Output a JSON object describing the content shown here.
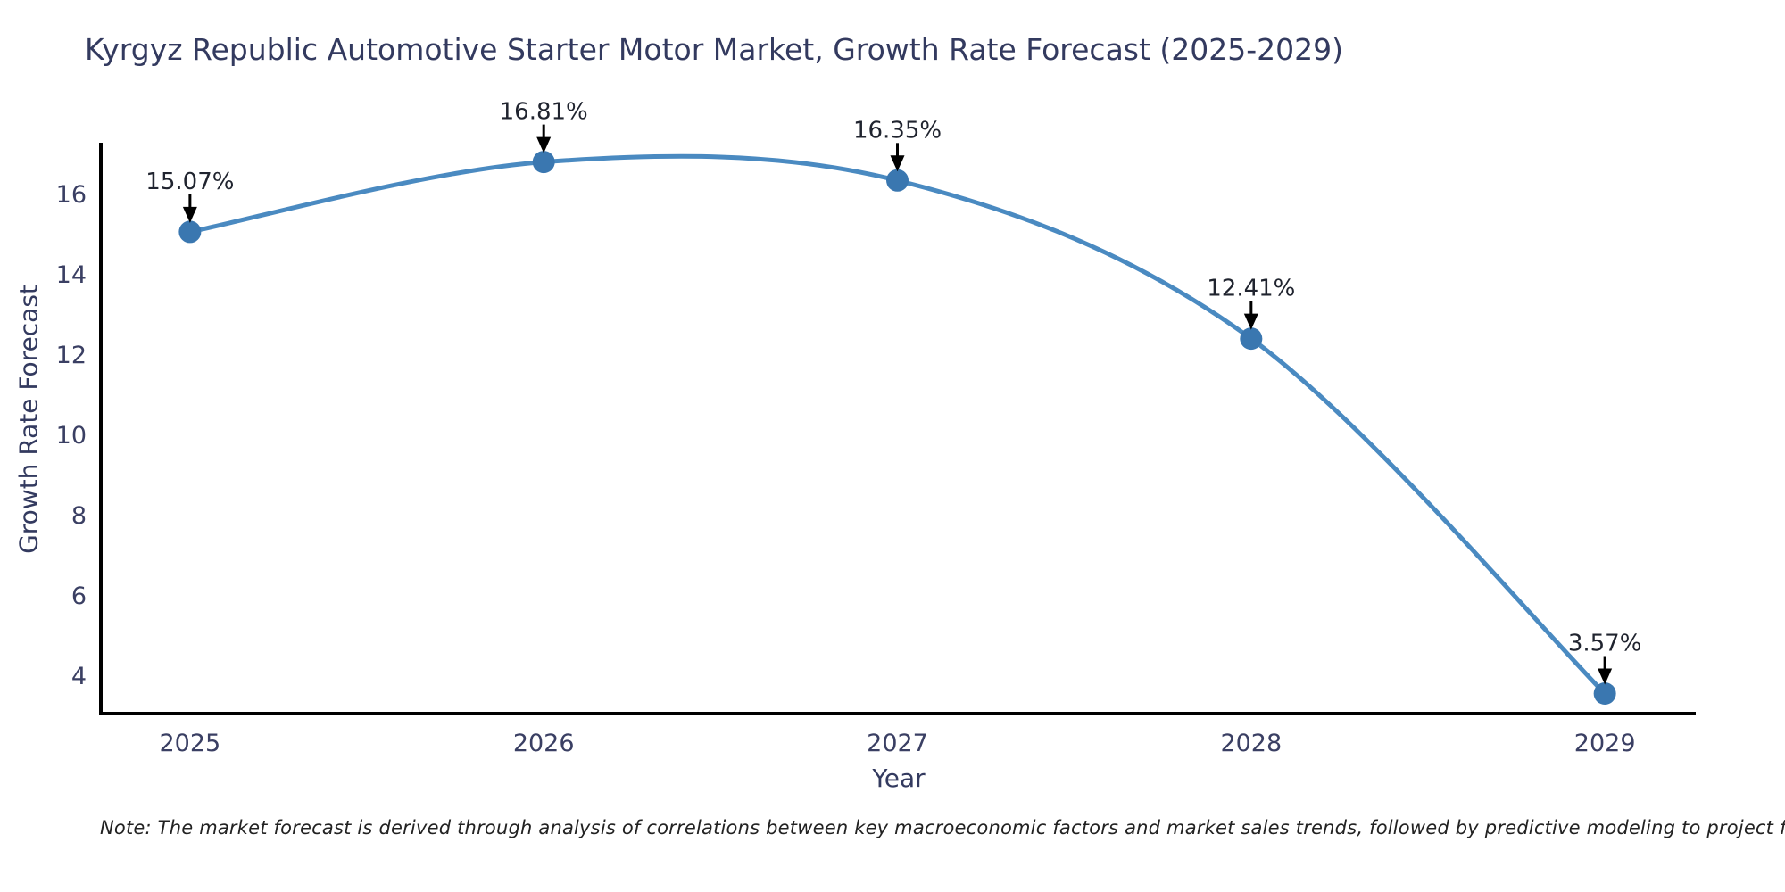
{
  "note": "Note: The market forecast is derived through analysis of correlations between key macroeconomic factors and market sales trends, followed by predictive modeling to project future sales.",
  "chart_data": {
    "type": "line",
    "title": "Kyrgyz Republic Automotive Starter Motor Market, Growth Rate Forecast (2025-2029)",
    "xlabel": "Year",
    "ylabel": "Growth Rate Forecast",
    "x": [
      2025,
      2026,
      2027,
      2028,
      2029
    ],
    "y": [
      15.07,
      16.81,
      16.35,
      12.41,
      3.57
    ],
    "point_labels": [
      "15.07%",
      "16.81%",
      "16.35%",
      "12.41%",
      "3.57%"
    ],
    "xticks": [
      2025,
      2026,
      2027,
      2028,
      2029
    ],
    "yticks": [
      4,
      6,
      8,
      10,
      12,
      14,
      16
    ],
    "xlim": [
      2024.748,
      2029.257
    ],
    "ylim": [
      3.07,
      17.29
    ],
    "grid": false,
    "legend": false,
    "line_shape": "spline",
    "colors": {
      "line": "#4a8ac1",
      "marker": "#3a77b0",
      "axis": "#000000",
      "tick_label": "#3a3f63",
      "annotation_text": "#20242f",
      "arrow": "#000000"
    }
  }
}
